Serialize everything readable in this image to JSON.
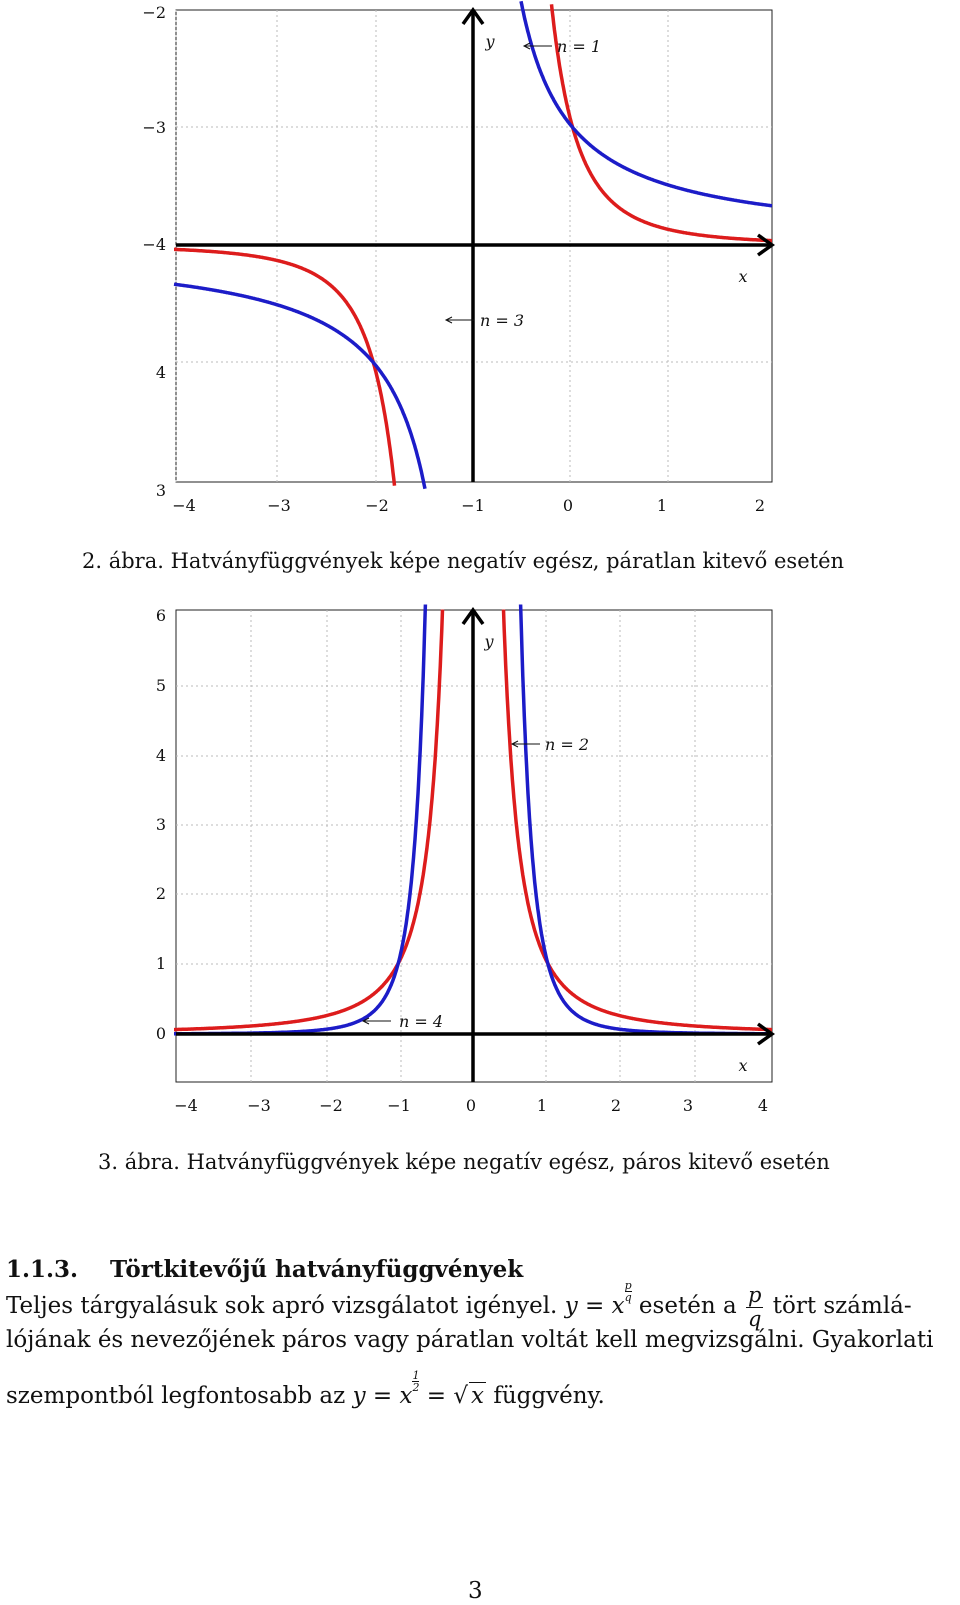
{
  "chart_data": [
    {
      "type": "line",
      "title": "",
      "xlabel": "x",
      "ylabel": "y",
      "x_tick_labels": [
        "−4",
        "−3",
        "−2",
        "−1",
        "0",
        "1",
        "2"
      ],
      "y_tick_labels": [
        "−2",
        "−3",
        "−4",
        "4",
        "3"
      ],
      "xlim": [
        -3,
        3
      ],
      "ylim": [
        -2,
        2
      ],
      "grid": true,
      "series": [
        {
          "name": "",
          "color": "#dd1c1c",
          "exponent": -3,
          "x": [
            -3,
            -2,
            -1.5,
            -1,
            -0.75,
            -0.6,
            0.6,
            0.75,
            1,
            1.5,
            2,
            3
          ],
          "y": [
            -0.037,
            -0.125,
            -0.296,
            -1,
            -2.37,
            -4.63,
            4.63,
            2.37,
            1,
            0.296,
            0.125,
            0.037
          ]
        },
        {
          "name": "",
          "color": "#1c1cc8",
          "exponent": -1,
          "x": [
            -3,
            -2,
            -1,
            -0.5,
            -0.3,
            0.3,
            0.5,
            1,
            2,
            3
          ],
          "y": [
            -0.333,
            -0.5,
            -1,
            -2,
            -3.33,
            3.33,
            2,
            1,
            0.5,
            0.333
          ]
        }
      ],
      "annotations": [
        {
          "text": "n = 1",
          "target": "blue"
        },
        {
          "text": "n = 3",
          "target": "red"
        }
      ]
    },
    {
      "type": "line",
      "title": "",
      "xlabel": "x",
      "ylabel": "y",
      "x_tick_labels": [
        "−4",
        "−3",
        "−2",
        "−1",
        "0",
        "1",
        "2",
        "3",
        "4"
      ],
      "y_tick_labels": [
        "6",
        "5",
        "4",
        "3",
        "2",
        "1",
        "0"
      ],
      "xlim": [
        -4,
        4
      ],
      "ylim": [
        -0.7,
        6
      ],
      "grid": true,
      "series": [
        {
          "name": "",
          "color": "#dd1c1c",
          "exponent": -2,
          "x": [
            -4,
            -3,
            -2,
            -1,
            -0.5,
            -0.4,
            0.4,
            0.5,
            1,
            2,
            3,
            4
          ],
          "y": [
            0.0625,
            0.111,
            0.25,
            1,
            4,
            6.25,
            6.25,
            4,
            1,
            0.25,
            0.111,
            0.0625
          ]
        },
        {
          "name": "",
          "color": "#1c1cc8",
          "exponent": -4,
          "x": [
            -4,
            -3,
            -2,
            -1,
            -0.7,
            -0.6,
            0.6,
            0.7,
            1,
            2,
            3,
            4
          ],
          "y": [
            0.0039,
            0.0123,
            0.0625,
            1,
            4.16,
            7.72,
            7.72,
            4.16,
            1,
            0.0625,
            0.0123,
            0.0039
          ]
        }
      ],
      "annotations": [
        {
          "text": "n = 2",
          "target": "red"
        },
        {
          "text": "n = 4",
          "target": "blue"
        }
      ]
    }
  ],
  "captions": {
    "fig2": "2. ábra. Hatványfüggvények képe negatív egész, páratlan kitevő esetén",
    "fig3": "3. ábra. Hatványfüggvények képe negatív egész, páros kitevő esetén"
  },
  "section": {
    "number": "1.1.3.",
    "title": "Törtkitevőjű hatványfüggvények"
  },
  "paragraph": {
    "l1a": "Teljes tárgyalásuk sok apró vizsgálatot igényel.",
    "l1_y": "y",
    "l1_eq": " = ",
    "l1_x": "x",
    "l1_sup_n": "p",
    "l1_sup_d": "q",
    "l1b": " esetén a ",
    "l1_frac_n": "p",
    "l1_frac_d": "q",
    "l1c": " tört számlá-",
    "l2": "lójának és nevezőjének páros vagy páratlan voltát kell megvizsgálni. Gyakorlati",
    "l3a": "szempontból legfontosabb az ",
    "l3_y": "y",
    "l3_eq": " = ",
    "l3_x": "x",
    "l3_sup_n": "1",
    "l3_sup_d": "2",
    "l3_eq2": " = ",
    "l3_sqrt": "x",
    "l3b": " függvény."
  },
  "page_number": "3"
}
